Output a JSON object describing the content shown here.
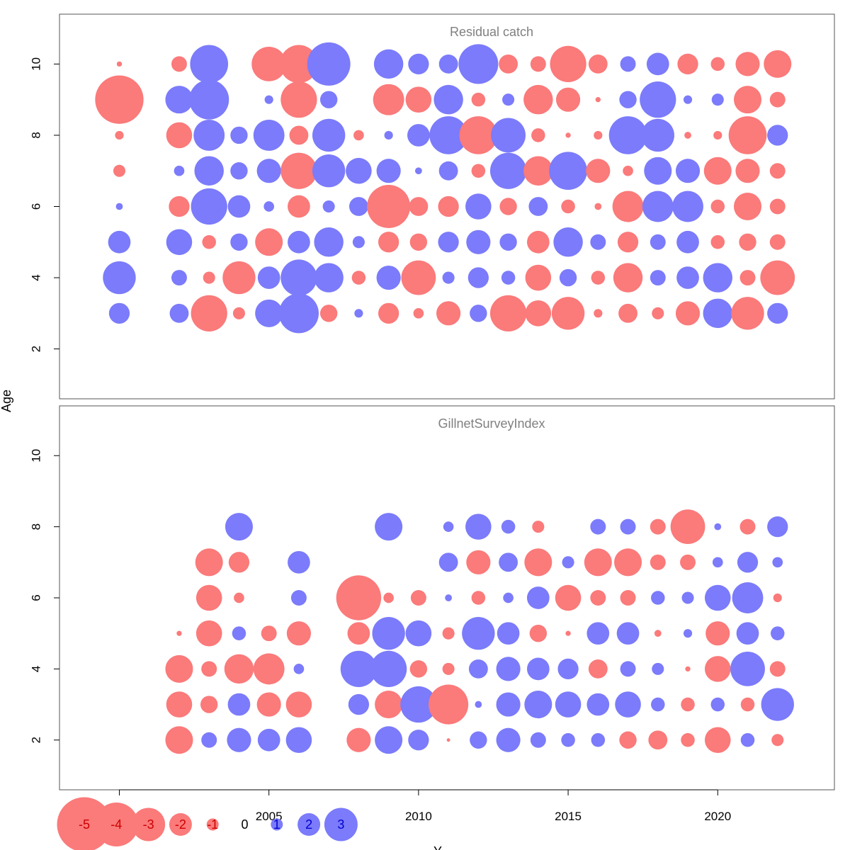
{
  "chart_data": {
    "type": "scatter",
    "subtype": "bubble",
    "ylabel": "Age",
    "xlabel": "Y",
    "xlim": [
      1998,
      2023.9
    ],
    "x_ticks": [
      2000,
      2005,
      2010,
      2015,
      2020
    ],
    "y_ticks": [
      2,
      4,
      6,
      8,
      10
    ],
    "colors": {
      "positive": "#7b7bfb",
      "negative": "#fb7a7a",
      "positive_text": "#0000cc",
      "negative_text": "#cc0000"
    },
    "legend": {
      "values": [
        -5,
        -4,
        -3,
        -2,
        -1,
        0,
        1,
        2,
        3
      ],
      "labels": [
        "-5",
        "-4",
        "-3",
        "-2",
        "-1",
        "0",
        "1",
        "2",
        "3"
      ]
    },
    "panels": [
      {
        "title": "Residual catch",
        "ylim": [
          0.6,
          11.4
        ],
        "years": [
          2000,
          2002,
          2003,
          2004,
          2005,
          2006,
          2007,
          2008,
          2009,
          2010,
          2011,
          2012,
          2013,
          2014,
          2015,
          2016,
          2017,
          2018,
          2019,
          2020,
          2021,
          2022
        ],
        "ages": [
          3,
          4,
          5,
          6,
          7,
          8,
          9,
          10
        ],
        "residuals": [
          [
            1.2,
            1.9,
            1.3,
            0.4,
            -0.7,
            -0.5,
            -2.8,
            -0.3
          ],
          [
            1.1,
            0.9,
            1.5,
            -1.2,
            0.6,
            -1.5,
            1.6,
            -0.9
          ],
          [
            -2.1,
            -0.7,
            -0.8,
            2.1,
            1.7,
            1.8,
            2.3,
            2.2
          ],
          [
            -0.7,
            -1.9,
            1.0,
            1.3,
            1.0,
            1.0,
            0.0,
            0.0
          ],
          [
            1.6,
            1.3,
            -1.6,
            0.6,
            1.4,
            1.8,
            0.5,
            -2.0
          ],
          [
            2.3,
            2.1,
            1.3,
            -1.3,
            -2.1,
            -1.1,
            -2.1,
            -2.2
          ],
          [
            -1.0,
            1.7,
            1.7,
            0.7,
            1.9,
            1.9,
            1.0,
            2.5
          ],
          [
            0.5,
            -0.8,
            0.7,
            1.1,
            1.5,
            -0.6,
            0.0,
            0.0
          ],
          [
            -1.2,
            1.4,
            -1.2,
            -2.5,
            1.4,
            0.5,
            -1.8,
            1.7
          ],
          [
            -0.6,
            -2.0,
            -1.0,
            -1.1,
            0.4,
            1.3,
            -1.5,
            1.2
          ],
          [
            -1.4,
            0.7,
            1.2,
            -1.2,
            1.1,
            2.2,
            1.7,
            1.1
          ],
          [
            1.0,
            1.2,
            1.4,
            1.5,
            -0.8,
            -2.2,
            -0.8,
            2.3
          ],
          [
            -2.1,
            0.8,
            1.0,
            -1.0,
            2.1,
            2.0,
            0.7,
            -1.1
          ],
          [
            -1.5,
            -1.5,
            -1.3,
            1.1,
            -1.7,
            -0.8,
            -1.7,
            -0.9
          ],
          [
            -1.9,
            1.0,
            1.7,
            -0.8,
            2.2,
            -0.3,
            -1.4,
            -2.1
          ],
          [
            -0.5,
            -0.8,
            0.9,
            -0.4,
            -1.4,
            -0.5,
            -0.3,
            -1.1
          ],
          [
            -1.1,
            -1.7,
            -1.2,
            -1.8,
            -0.6,
            2.2,
            1.0,
            0.9
          ],
          [
            -0.7,
            0.9,
            0.9,
            1.8,
            1.6,
            1.9,
            2.1,
            1.3
          ],
          [
            -1.4,
            1.3,
            1.3,
            1.8,
            1.4,
            -0.4,
            0.5,
            -1.2
          ],
          [
            1.7,
            1.7,
            -0.8,
            -0.8,
            -1.6,
            -0.5,
            0.7,
            -0.8
          ],
          [
            -1.9,
            -0.9,
            -1.0,
            -1.6,
            -1.4,
            -2.2,
            -1.6,
            -1.4
          ],
          [
            1.2,
            -2.0,
            -0.9,
            -0.9,
            -0.9,
            1.2,
            -0.9,
            -1.6
          ]
        ]
      },
      {
        "title": "GillnetSurveyIndex",
        "ylim": [
          0.6,
          11.4
        ],
        "years": [
          2002,
          2003,
          2004,
          2005,
          2006,
          2008,
          2009,
          2010,
          2011,
          2012,
          2013,
          2014,
          2015,
          2016,
          2017,
          2018,
          2019,
          2020,
          2021,
          2022
        ],
        "ages": [
          2,
          3,
          4,
          5,
          6,
          7,
          8
        ],
        "residuals": [
          [
            -1.6,
            -1.5,
            -1.6,
            -0.3,
            null,
            null,
            null
          ],
          [
            0.9,
            -1.0,
            -0.9,
            -1.5,
            -1.5,
            -1.6,
            null
          ],
          [
            1.4,
            1.3,
            -1.7,
            0.8,
            -0.6,
            -1.2,
            1.6
          ],
          [
            1.3,
            -1.4,
            -1.8,
            -0.9,
            null,
            null,
            null
          ],
          [
            1.5,
            -1.5,
            0.6,
            -1.4,
            0.9,
            1.3,
            null
          ],
          [
            -1.4,
            1.2,
            2.1,
            -1.3,
            -2.6,
            null,
            null
          ],
          [
            1.6,
            -1.6,
            2.1,
            1.9,
            -0.6,
            null,
            1.6
          ],
          [
            1.2,
            2.1,
            -1.0,
            1.5,
            -0.9,
            null,
            null
          ],
          [
            -0.2,
            -2.3,
            -0.7,
            -0.7,
            0.4,
            1.1,
            0.6
          ],
          [
            1.0,
            0.4,
            1.1,
            1.9,
            -0.8,
            -1.4,
            1.5
          ],
          [
            1.4,
            1.4,
            1.4,
            1.3,
            0.6,
            1.1,
            0.8
          ],
          [
            0.9,
            1.6,
            1.3,
            -1.0,
            1.3,
            -1.6,
            -0.7
          ],
          [
            0.8,
            1.5,
            1.2,
            -0.3,
            -1.5,
            0.7,
            null
          ],
          [
            0.8,
            1.3,
            -1.1,
            1.3,
            -0.9,
            -1.6,
            0.9
          ],
          [
            -1.0,
            1.5,
            0.9,
            1.3,
            -0.9,
            -1.6,
            0.9
          ],
          [
            -1.1,
            0.8,
            0.7,
            -0.4,
            0.8,
            -0.9,
            -0.9
          ],
          [
            -0.8,
            -0.8,
            -0.3,
            0.5,
            0.7,
            -0.9,
            -2.0
          ],
          [
            -1.5,
            0.8,
            -1.5,
            -1.4,
            1.5,
            0.6,
            0.4
          ],
          [
            0.8,
            -0.8,
            2.0,
            1.3,
            1.8,
            1.2,
            -0.9
          ],
          [
            -0.7,
            1.9,
            -0.9,
            0.8,
            -0.5,
            0.6,
            1.2
          ]
        ]
      }
    ]
  }
}
